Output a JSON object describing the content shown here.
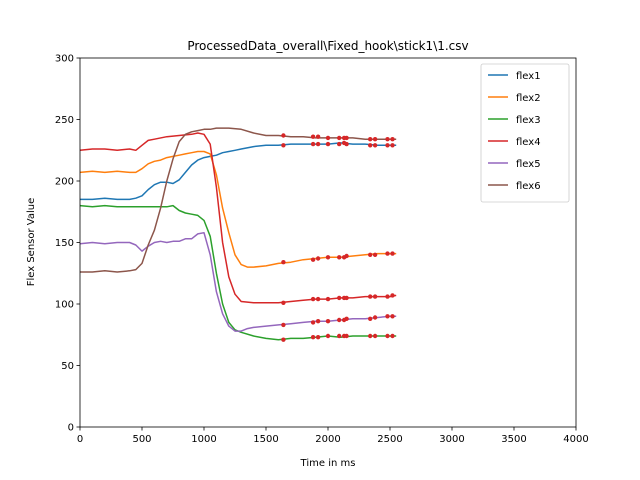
{
  "chart_data": {
    "type": "line",
    "title": "ProcessedData_overall\\Fixed_hook\\stick1\\1.csv",
    "xlabel": "Time in ms",
    "ylabel": "Flex Sensor Value",
    "xlim": [
      0,
      4000
    ],
    "ylim": [
      0,
      300
    ],
    "xticks": [
      "0",
      "500",
      "1000",
      "1500",
      "2000",
      "2500",
      "3000",
      "3500",
      "4000"
    ],
    "yticks": [
      "0",
      "50",
      "100",
      "150",
      "200",
      "250",
      "300"
    ],
    "grid": false,
    "legend_position": "top-right",
    "marker_color": "#d62728",
    "series": [
      {
        "name": "flex1",
        "color": "#1f77b4",
        "x": [
          0,
          100,
          200,
          300,
          400,
          450,
          500,
          550,
          600,
          650,
          700,
          750,
          800,
          850,
          900,
          950,
          1000,
          1050,
          1100,
          1150,
          1200,
          1250,
          1300,
          1400,
          1500,
          1600,
          1700,
          1800,
          1900,
          2000,
          2100,
          2200,
          2300,
          2400,
          2500,
          2550
        ],
        "y": [
          185,
          185,
          186,
          185,
          185,
          186,
          188,
          193,
          197,
          199,
          199,
          198,
          201,
          207,
          213,
          217,
          219,
          220,
          221,
          223,
          224,
          225,
          226,
          228,
          229,
          229,
          230,
          230,
          230,
          230,
          231,
          230,
          230,
          229,
          229,
          229
        ]
      },
      {
        "name": "flex2",
        "color": "#ff7f0e",
        "x": [
          0,
          100,
          200,
          300,
          400,
          450,
          500,
          550,
          600,
          650,
          700,
          750,
          800,
          850,
          900,
          950,
          1000,
          1050,
          1100,
          1150,
          1200,
          1250,
          1300,
          1350,
          1400,
          1500,
          1600,
          1700,
          1800,
          1900,
          2000,
          2100,
          2200,
          2300,
          2400,
          2500,
          2550
        ],
        "y": [
          207,
          208,
          207,
          208,
          207,
          207,
          210,
          214,
          216,
          217,
          219,
          220,
          221,
          222,
          223,
          224,
          224,
          222,
          205,
          178,
          158,
          140,
          132,
          130,
          130,
          131,
          133,
          134,
          136,
          137,
          138,
          138,
          139,
          140,
          141,
          141,
          141
        ]
      },
      {
        "name": "flex3",
        "color": "#2ca02c",
        "x": [
          0,
          100,
          200,
          300,
          400,
          500,
          600,
          700,
          750,
          800,
          850,
          900,
          950,
          1000,
          1050,
          1100,
          1150,
          1200,
          1250,
          1300,
          1400,
          1500,
          1600,
          1700,
          1800,
          1900,
          2000,
          2100,
          2200,
          2300,
          2400,
          2500,
          2550
        ],
        "y": [
          180,
          179,
          180,
          179,
          179,
          179,
          179,
          179,
          180,
          176,
          174,
          173,
          172,
          168,
          155,
          125,
          100,
          85,
          79,
          77,
          74,
          72,
          71,
          72,
          72,
          73,
          74,
          73,
          74,
          74,
          74,
          74,
          74
        ]
      },
      {
        "name": "flex4",
        "color": "#d62728",
        "x": [
          0,
          100,
          200,
          300,
          400,
          450,
          500,
          550,
          600,
          700,
          800,
          900,
          950,
          1000,
          1050,
          1100,
          1150,
          1200,
          1250,
          1300,
          1400,
          1500,
          1600,
          1700,
          1800,
          1900,
          2000,
          2100,
          2200,
          2300,
          2400,
          2500,
          2550
        ],
        "y": [
          225,
          226,
          226,
          225,
          226,
          225,
          229,
          233,
          234,
          236,
          237,
          238,
          239,
          238,
          230,
          195,
          150,
          122,
          108,
          102,
          101,
          101,
          101,
          102,
          103,
          104,
          104,
          105,
          105,
          106,
          106,
          106,
          107
        ]
      },
      {
        "name": "flex5",
        "color": "#9467bd",
        "x": [
          0,
          100,
          200,
          300,
          400,
          450,
          500,
          550,
          600,
          650,
          700,
          750,
          800,
          850,
          900,
          950,
          1000,
          1050,
          1100,
          1150,
          1200,
          1250,
          1300,
          1350,
          1400,
          1500,
          1600,
          1700,
          1800,
          1900,
          2000,
          2100,
          2200,
          2300,
          2400,
          2500,
          2550
        ],
        "y": [
          149,
          150,
          149,
          150,
          150,
          148,
          143,
          147,
          150,
          151,
          150,
          151,
          151,
          153,
          153,
          157,
          158,
          140,
          110,
          92,
          82,
          78,
          78,
          80,
          81,
          82,
          83,
          84,
          85,
          86,
          86,
          87,
          88,
          88,
          89,
          90,
          90
        ]
      },
      {
        "name": "flex6",
        "color": "#8c564b",
        "x": [
          0,
          100,
          200,
          300,
          400,
          450,
          500,
          550,
          600,
          650,
          700,
          750,
          800,
          850,
          900,
          950,
          1000,
          1050,
          1100,
          1150,
          1200,
          1300,
          1400,
          1500,
          1600,
          1700,
          1800,
          1900,
          2000,
          2100,
          2200,
          2300,
          2400,
          2500,
          2550
        ],
        "y": [
          126,
          126,
          127,
          126,
          127,
          128,
          133,
          148,
          160,
          178,
          200,
          218,
          232,
          238,
          240,
          241,
          242,
          242,
          243,
          243,
          243,
          242,
          239,
          237,
          237,
          236,
          236,
          235,
          235,
          235,
          235,
          234,
          234,
          234,
          234
        ]
      }
    ],
    "markers": [
      {
        "series": "flex1",
        "x": [
          1640,
          1880,
          1920,
          2000,
          2090,
          2130,
          2150,
          2340,
          2380,
          2480,
          2520
        ],
        "y": [
          229,
          230,
          230,
          230,
          230,
          231,
          230,
          229,
          229,
          229,
          229
        ]
      },
      {
        "series": "flex2",
        "x": [
          1640,
          1880,
          1920,
          2000,
          2090,
          2130,
          2150,
          2340,
          2380,
          2480,
          2520
        ],
        "y": [
          134,
          136,
          137,
          138,
          138,
          138,
          139,
          140,
          140,
          141,
          141
        ]
      },
      {
        "series": "flex3",
        "x": [
          1640,
          1880,
          1920,
          2000,
          2090,
          2130,
          2150,
          2340,
          2380,
          2480,
          2520
        ],
        "y": [
          71,
          73,
          73,
          74,
          74,
          74,
          74,
          74,
          74,
          74,
          74
        ]
      },
      {
        "series": "flex4",
        "x": [
          1640,
          1880,
          1920,
          2000,
          2090,
          2130,
          2150,
          2340,
          2380,
          2480,
          2520
        ],
        "y": [
          101,
          104,
          104,
          104,
          105,
          105,
          105,
          106,
          106,
          106,
          107
        ]
      },
      {
        "series": "flex5",
        "x": [
          1640,
          1880,
          1920,
          2000,
          2090,
          2130,
          2150,
          2340,
          2380,
          2480,
          2520
        ],
        "y": [
          83,
          85,
          86,
          86,
          87,
          87,
          88,
          88,
          89,
          90,
          90
        ]
      },
      {
        "series": "flex6",
        "x": [
          1640,
          1880,
          1920,
          2000,
          2090,
          2130,
          2150,
          2340,
          2380,
          2480,
          2520
        ],
        "y": [
          237,
          236,
          236,
          235,
          235,
          235,
          235,
          234,
          234,
          234,
          234
        ]
      }
    ]
  }
}
